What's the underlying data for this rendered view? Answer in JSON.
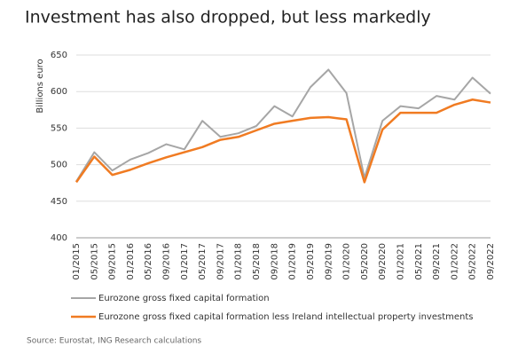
{
  "chart_data": {
    "type": "line",
    "title": "Investment has also dropped, but less markedly",
    "y_label": "Billions euro",
    "source": "Source: Eurostat, ING Research calculations",
    "categories": [
      "01/2015",
      "05/2015",
      "09/2015",
      "01/2016",
      "05/2016",
      "09/2016",
      "01/2017",
      "05/2017",
      "09/2017",
      "01/2018",
      "05/2018",
      "09/2018",
      "01/2019",
      "05/2019",
      "09/2019",
      "01/2020",
      "05/2020",
      "09/2020",
      "01/2021",
      "05/2021",
      "09/2021",
      "01/2022",
      "05/2022",
      "09/2022"
    ],
    "series": [
      {
        "name": "Eurozone gross fixed capital formation",
        "color": "#a6a6a6",
        "values": [
          477,
          517,
          492,
          507,
          516,
          528,
          521,
          560,
          538,
          543,
          553,
          580,
          566,
          606,
          630,
          598,
          482,
          560,
          580,
          577,
          594,
          589,
          619,
          597
        ]
      },
      {
        "name": "Eurozone gross fixed capital formation less Ireland intellectual property investments",
        "color": "#f07b22",
        "values": [
          476,
          511,
          486,
          493,
          502,
          510,
          517,
          524,
          534,
          538,
          547,
          556,
          560,
          564,
          565,
          562,
          476,
          548,
          571,
          571,
          571,
          582,
          589,
          585
        ]
      }
    ],
    "ylim": [
      400,
      650
    ],
    "yticks": [
      400,
      450,
      500,
      550,
      600,
      650
    ],
    "grid": true
  }
}
